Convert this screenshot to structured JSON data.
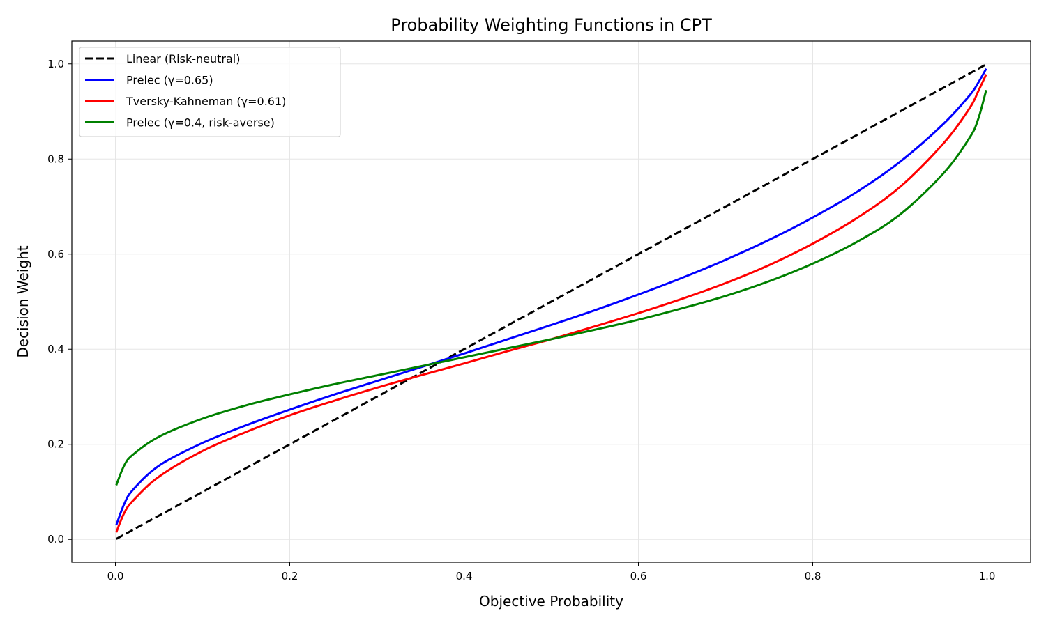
{
  "chart_data": {
    "type": "line",
    "title": "Probability Weighting Functions in CPT",
    "xlabel": "Objective Probability",
    "ylabel": "Decision Weight",
    "xlim": [
      -0.05,
      1.05
    ],
    "ylim": [
      -0.048,
      1.048
    ],
    "xticks": [
      "0.0",
      "0.2",
      "0.4",
      "0.6",
      "0.8",
      "1.0"
    ],
    "yticks": [
      "0.0",
      "0.2",
      "0.4",
      "0.6",
      "0.8",
      "1.0"
    ],
    "grid": true,
    "legend_position": "upper-left",
    "series": [
      {
        "name": "Linear (Risk-neutral)",
        "color": "#000000",
        "dash": true,
        "x": [
          0.001,
          0.01,
          0.02,
          0.05,
          0.1,
          0.15,
          0.2,
          0.25,
          0.3,
          0.35,
          0.4,
          0.45,
          0.5,
          0.55,
          0.6,
          0.65,
          0.7,
          0.75,
          0.8,
          0.85,
          0.9,
          0.95,
          0.98,
          0.99,
          0.999
        ],
        "y": [
          0.001,
          0.01,
          0.02,
          0.05,
          0.1,
          0.15,
          0.2,
          0.25,
          0.3,
          0.35,
          0.4,
          0.45,
          0.5,
          0.55,
          0.6,
          0.65,
          0.7,
          0.75,
          0.8,
          0.85,
          0.9,
          0.95,
          0.98,
          0.99,
          0.999
        ]
      },
      {
        "name": "Prelec (γ=0.65)",
        "color": "#0000ff",
        "dash": false,
        "x": [
          0.001,
          0.01,
          0.02,
          0.05,
          0.1,
          0.15,
          0.2,
          0.25,
          0.3,
          0.35,
          0.4,
          0.45,
          0.5,
          0.55,
          0.6,
          0.65,
          0.7,
          0.75,
          0.8,
          0.85,
          0.9,
          0.95,
          0.98,
          0.99,
          0.999
        ],
        "y": [
          0.03,
          0.074,
          0.104,
          0.155,
          0.203,
          0.24,
          0.273,
          0.304,
          0.333,
          0.362,
          0.391,
          0.421,
          0.451,
          0.482,
          0.515,
          0.55,
          0.588,
          0.63,
          0.677,
          0.73,
          0.794,
          0.874,
          0.934,
          0.961,
          0.99
        ]
      },
      {
        "name": "Tversky-Kahneman (γ=0.61)",
        "color": "#ff0000",
        "dash": false,
        "x": [
          0.001,
          0.01,
          0.02,
          0.05,
          0.1,
          0.15,
          0.2,
          0.25,
          0.3,
          0.35,
          0.4,
          0.45,
          0.5,
          0.55,
          0.6,
          0.65,
          0.7,
          0.75,
          0.8,
          0.85,
          0.9,
          0.95,
          0.98,
          0.99,
          0.999
        ],
        "y": [
          0.015,
          0.055,
          0.081,
          0.132,
          0.186,
          0.226,
          0.261,
          0.291,
          0.319,
          0.345,
          0.37,
          0.396,
          0.421,
          0.448,
          0.476,
          0.506,
          0.539,
          0.577,
          0.622,
          0.675,
          0.741,
          0.833,
          0.907,
          0.943,
          0.978
        ]
      },
      {
        "name": "Prelec (γ=0.4, risk-averse)",
        "color": "#008000",
        "dash": false,
        "x": [
          0.001,
          0.01,
          0.02,
          0.05,
          0.1,
          0.15,
          0.2,
          0.25,
          0.3,
          0.35,
          0.4,
          0.45,
          0.5,
          0.55,
          0.6,
          0.65,
          0.7,
          0.75,
          0.8,
          0.85,
          0.9,
          0.95,
          0.98,
          0.99,
          0.999
        ],
        "y": [
          0.114,
          0.155,
          0.178,
          0.216,
          0.254,
          0.282,
          0.305,
          0.326,
          0.345,
          0.364,
          0.383,
          0.402,
          0.421,
          0.441,
          0.462,
          0.486,
          0.512,
          0.543,
          0.58,
          0.625,
          0.683,
          0.77,
          0.845,
          0.885,
          0.945
        ]
      }
    ]
  }
}
